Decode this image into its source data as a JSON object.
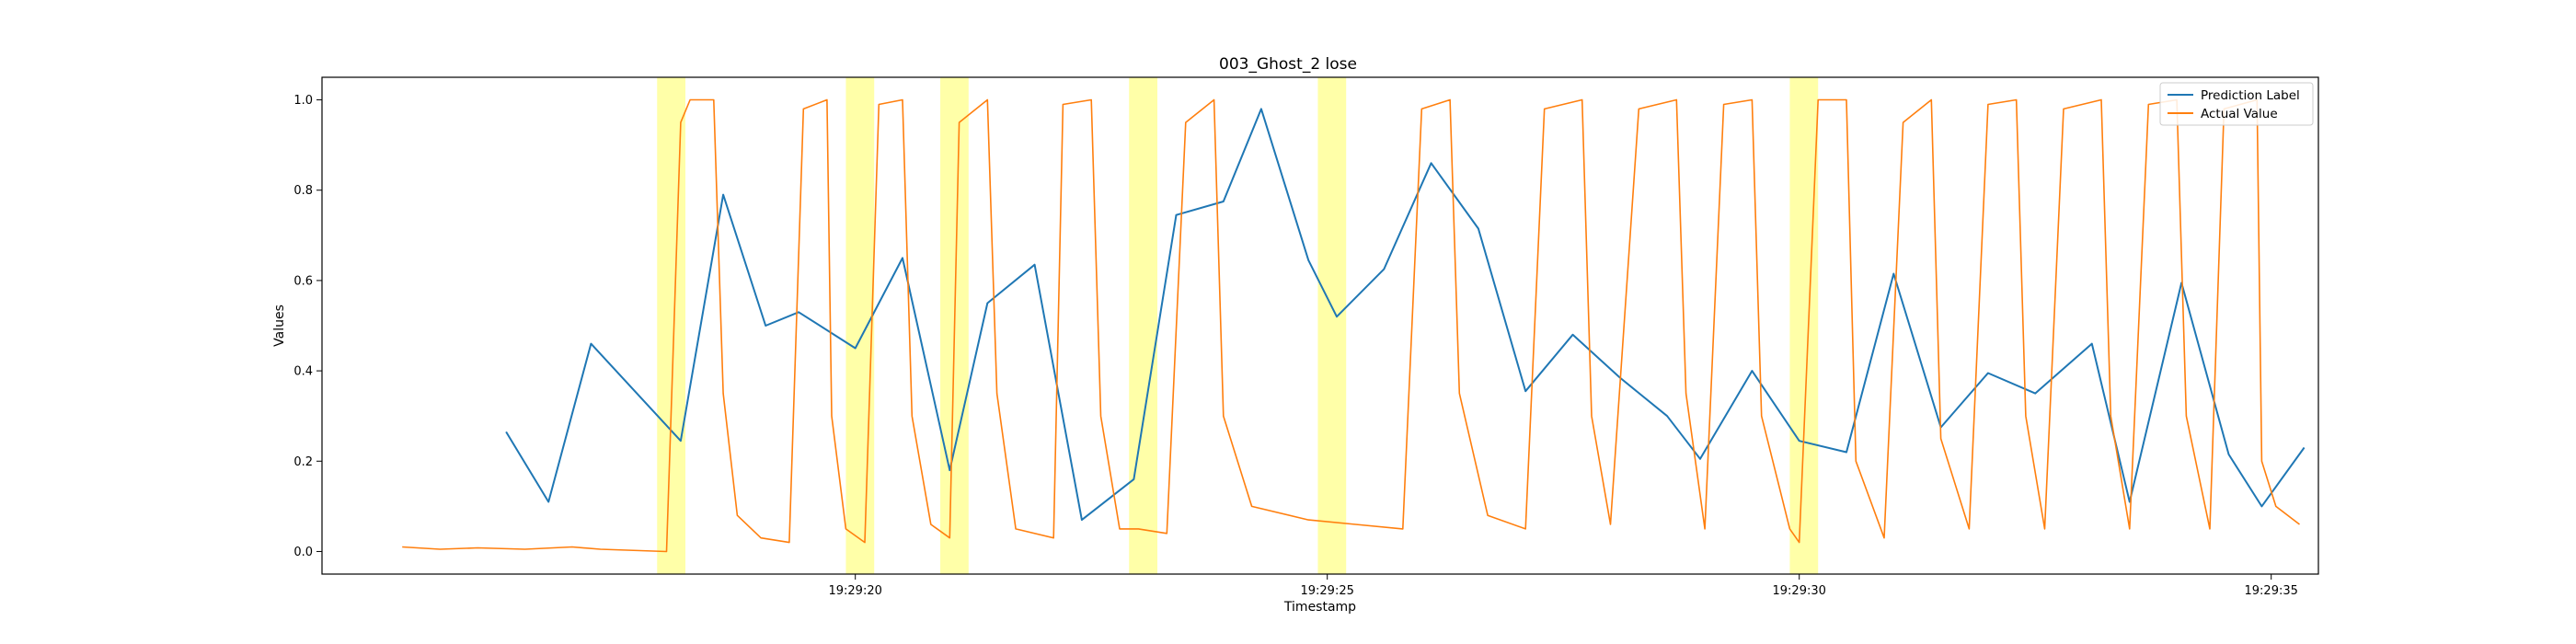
{
  "chart_data": {
    "type": "line",
    "title": "003_Ghost_2 lose",
    "xlabel": "Timestamp",
    "ylabel": "Values",
    "x_unit": "seconds past 19:29:00",
    "xlim": [
      14.35,
      35.5
    ],
    "ylim": [
      -0.05,
      1.05
    ],
    "x_ticks": [
      {
        "value": 20,
        "label": "19:29:20"
      },
      {
        "value": 25,
        "label": "19:29:25"
      },
      {
        "value": 30,
        "label": "19:29:30"
      },
      {
        "value": 35,
        "label": "19:29:35"
      }
    ],
    "y_ticks": [
      {
        "value": 0.0,
        "label": "0.0"
      },
      {
        "value": 0.2,
        "label": "0.2"
      },
      {
        "value": 0.4,
        "label": "0.4"
      },
      {
        "value": 0.6,
        "label": "0.6"
      },
      {
        "value": 0.8,
        "label": "0.8"
      },
      {
        "value": 1.0,
        "label": "1.0"
      }
    ],
    "grid": false,
    "legend_position": "top-right",
    "highlight_bands": [
      {
        "x0": 17.9,
        "x1": 18.2
      },
      {
        "x0": 19.9,
        "x1": 20.2
      },
      {
        "x0": 20.9,
        "x1": 21.2
      },
      {
        "x0": 22.9,
        "x1": 23.2
      },
      {
        "x0": 24.9,
        "x1": 25.2
      },
      {
        "x0": 29.9,
        "x1": 30.2
      }
    ],
    "highlight_color": "#ffff99",
    "series": [
      {
        "name": "Prediction Label",
        "color": "#1f77b4",
        "points": [
          [
            16.3,
            0.265
          ],
          [
            16.75,
            0.11
          ],
          [
            17.2,
            0.46
          ],
          [
            18.15,
            0.245
          ],
          [
            18.6,
            0.79
          ],
          [
            19.05,
            0.5
          ],
          [
            19.4,
            0.53
          ],
          [
            20.0,
            0.45
          ],
          [
            20.5,
            0.65
          ],
          [
            21.0,
            0.18
          ],
          [
            21.4,
            0.55
          ],
          [
            21.9,
            0.635
          ],
          [
            22.4,
            0.07
          ],
          [
            22.95,
            0.16
          ],
          [
            23.4,
            0.745
          ],
          [
            23.9,
            0.775
          ],
          [
            24.3,
            0.98
          ],
          [
            24.8,
            0.645
          ],
          [
            25.1,
            0.52
          ],
          [
            25.6,
            0.625
          ],
          [
            26.1,
            0.86
          ],
          [
            26.6,
            0.715
          ],
          [
            27.1,
            0.355
          ],
          [
            27.6,
            0.48
          ],
          [
            28.1,
            0.385
          ],
          [
            28.6,
            0.3
          ],
          [
            28.95,
            0.205
          ],
          [
            29.5,
            0.4
          ],
          [
            30.0,
            0.245
          ],
          [
            30.5,
            0.22
          ],
          [
            31.0,
            0.615
          ],
          [
            31.5,
            0.275
          ],
          [
            32.0,
            0.395
          ],
          [
            32.5,
            0.35
          ],
          [
            33.1,
            0.46
          ],
          [
            33.5,
            0.11
          ],
          [
            34.05,
            0.595
          ],
          [
            34.55,
            0.215
          ],
          [
            34.9,
            0.1
          ],
          [
            35.35,
            0.23
          ]
        ]
      },
      {
        "name": "Actual Value",
        "color": "#ff7f0e",
        "points": [
          [
            15.2,
            0.01
          ],
          [
            15.6,
            0.005
          ],
          [
            16.0,
            0.008
          ],
          [
            16.5,
            0.005
          ],
          [
            17.0,
            0.01
          ],
          [
            17.3,
            0.005
          ],
          [
            18.0,
            0.0
          ],
          [
            18.15,
            0.95
          ],
          [
            18.25,
            1.0
          ],
          [
            18.5,
            1.0
          ],
          [
            18.6,
            0.35
          ],
          [
            18.75,
            0.08
          ],
          [
            19.0,
            0.03
          ],
          [
            19.3,
            0.02
          ],
          [
            19.45,
            0.98
          ],
          [
            19.7,
            1.0
          ],
          [
            19.75,
            0.3
          ],
          [
            19.9,
            0.05
          ],
          [
            20.1,
            0.02
          ],
          [
            20.25,
            0.99
          ],
          [
            20.5,
            1.0
          ],
          [
            20.6,
            0.3
          ],
          [
            20.8,
            0.06
          ],
          [
            21.0,
            0.03
          ],
          [
            21.1,
            0.95
          ],
          [
            21.4,
            1.0
          ],
          [
            21.5,
            0.35
          ],
          [
            21.7,
            0.05
          ],
          [
            22.1,
            0.03
          ],
          [
            22.2,
            0.99
          ],
          [
            22.5,
            1.0
          ],
          [
            22.6,
            0.3
          ],
          [
            22.8,
            0.05
          ],
          [
            23.0,
            0.05
          ],
          [
            23.3,
            0.04
          ],
          [
            23.5,
            0.95
          ],
          [
            23.8,
            1.0
          ],
          [
            23.9,
            0.3
          ],
          [
            24.2,
            0.1
          ],
          [
            24.8,
            0.07
          ],
          [
            25.3,
            0.06
          ],
          [
            25.8,
            0.05
          ],
          [
            26.0,
            0.98
          ],
          [
            26.3,
            1.0
          ],
          [
            26.4,
            0.35
          ],
          [
            26.7,
            0.08
          ],
          [
            27.1,
            0.05
          ],
          [
            27.3,
            0.98
          ],
          [
            27.7,
            1.0
          ],
          [
            27.8,
            0.3
          ],
          [
            28.0,
            0.06
          ],
          [
            28.3,
            0.98
          ],
          [
            28.7,
            1.0
          ],
          [
            28.8,
            0.35
          ],
          [
            29.0,
            0.05
          ],
          [
            29.2,
            0.99
          ],
          [
            29.5,
            1.0
          ],
          [
            29.6,
            0.3
          ],
          [
            29.9,
            0.05
          ],
          [
            30.0,
            0.02
          ],
          [
            30.2,
            1.0
          ],
          [
            30.5,
            1.0
          ],
          [
            30.6,
            0.2
          ],
          [
            30.9,
            0.03
          ],
          [
            31.1,
            0.95
          ],
          [
            31.4,
            1.0
          ],
          [
            31.5,
            0.25
          ],
          [
            31.8,
            0.05
          ],
          [
            32.0,
            0.99
          ],
          [
            32.3,
            1.0
          ],
          [
            32.4,
            0.3
          ],
          [
            32.6,
            0.05
          ],
          [
            32.8,
            0.98
          ],
          [
            33.2,
            1.0
          ],
          [
            33.3,
            0.3
          ],
          [
            33.5,
            0.05
          ],
          [
            33.7,
            0.99
          ],
          [
            34.0,
            1.0
          ],
          [
            34.1,
            0.3
          ],
          [
            34.35,
            0.05
          ],
          [
            34.5,
            0.98
          ],
          [
            34.85,
            1.0
          ],
          [
            34.9,
            0.2
          ],
          [
            35.05,
            0.1
          ],
          [
            35.3,
            0.06
          ]
        ]
      }
    ]
  }
}
